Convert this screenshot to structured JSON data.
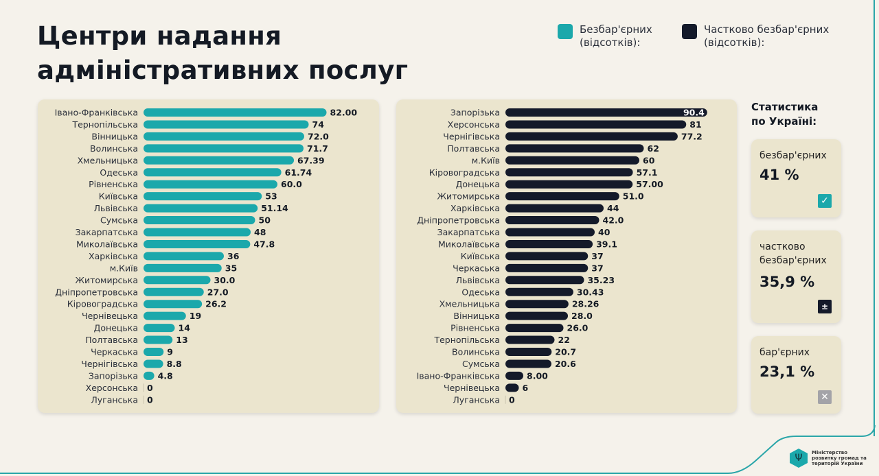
{
  "title_line1": "Центри надання",
  "title_line2": "адміністративних послуг",
  "legend": [
    {
      "label_line1": "Безбар'єрних",
      "label_line2": "(відсотків):",
      "color": "#1ba8ab"
    },
    {
      "label_line1": "Частково безбар'єрних",
      "label_line2": "(відсотків):",
      "color": "#141a2a"
    }
  ],
  "chart_data": [
    {
      "type": "bar",
      "orientation": "horizontal",
      "series_name": "Безбар'єрних (відсотків)",
      "color": "#1ba8ab",
      "categories": [
        "Івано-Франківська",
        "Тернопільська",
        "Вінницька",
        "Волинська",
        "Хмельницька",
        "Одеська",
        "Рівненська",
        "Київська",
        "Львівська",
        "Сумська",
        "Закарпатська",
        "Миколаївська",
        "Харківська",
        "м.Київ",
        "Житомирська",
        "Дніпропетровська",
        "Кіровоградська",
        "Чернівецька",
        "Донецька",
        "Полтавська",
        "Черкаська",
        "Чернігівська",
        "Запорізька",
        "Херсонська",
        "Луганська"
      ],
      "values": [
        82.0,
        74,
        72.0,
        71.7,
        67.39,
        61.74,
        60.0,
        53,
        51.14,
        50,
        48,
        47.8,
        36,
        35,
        30.0,
        27.0,
        26.2,
        19,
        14,
        13,
        9,
        8.8,
        4.8,
        0,
        0
      ],
      "value_labels": [
        "82.00",
        "74",
        "72.0",
        "71.7",
        "67.39",
        "61.74",
        "60.0",
        "53",
        "51.14",
        "50",
        "48",
        "47.8",
        "36",
        "35",
        "30.0",
        "27.0",
        "26.2",
        "19",
        "14",
        "13",
        "9",
        "8.8",
        "4.8",
        "0",
        "0"
      ]
    },
    {
      "type": "bar",
      "orientation": "horizontal",
      "series_name": "Частково безбар'єрних (відсотків)",
      "color": "#141a2a",
      "categories": [
        "Запорізька",
        "Херсонська",
        "Чернігівська",
        "Полтавська",
        "м.Київ",
        "Кіровоградська",
        "Донецька",
        "Житомирська",
        "Харківська",
        "Дніпропетровська",
        "Закарпатська",
        "Миколаївська",
        "Київська",
        "Черкаська",
        "Львівська",
        "Одеська",
        "Хмельницька",
        "Вінницька",
        "Рівненська",
        "Тернопільська",
        "Волинська",
        "Сумська",
        "Івано-Франківська",
        "Чернівецька",
        "Луганська"
      ],
      "values": [
        90.4,
        81,
        77.2,
        62,
        60,
        57.1,
        57.0,
        51.0,
        44,
        42.0,
        40,
        39.1,
        37,
        37,
        35.23,
        30.43,
        28.26,
        28.0,
        26.0,
        22,
        20.7,
        20.6,
        8.0,
        6,
        0
      ],
      "value_labels": [
        "90.4",
        "81",
        "77.2",
        "62",
        "60",
        "57.1",
        "57.00",
        "51.0",
        "44",
        "42.0",
        "40",
        "39.1",
        "37",
        "37",
        "35.23",
        "30.43",
        "28.26",
        "28.0",
        "26.0",
        "22",
        "20.7",
        "20.6",
        "8.00",
        "6",
        "0"
      ]
    }
  ],
  "stats": {
    "title_line1": "Статистика",
    "title_line2": "по Україні:",
    "cards": [
      {
        "label": "безбар'єрних",
        "value": "41 %",
        "icon": "check-icon",
        "icon_color": "#1ba8ab"
      },
      {
        "label": "частково безбар'єрних",
        "value": "35,9  %",
        "icon": "plus-minus-icon",
        "icon_color": "#141a2a"
      },
      {
        "label": "бар'єрних",
        "value": "23,1 %",
        "icon": "x-icon",
        "icon_color": "#a3a3a8"
      }
    ]
  },
  "footer": {
    "ministry": "Міністерство розвитку громад та територій України"
  }
}
